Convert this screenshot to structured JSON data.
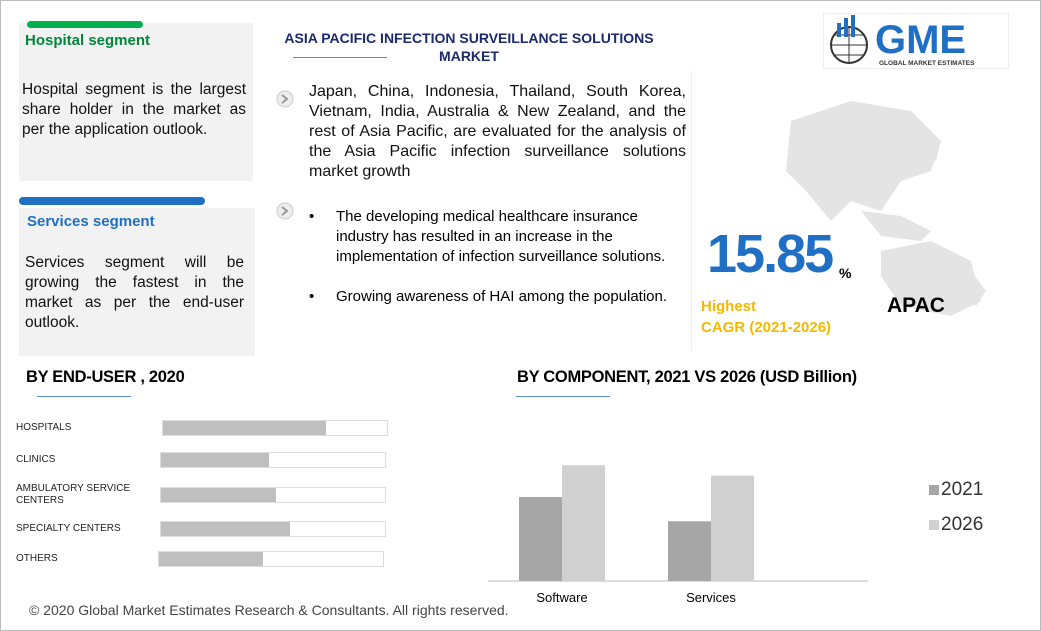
{
  "header": {
    "title": "ASIA PACIFIC INFECTION SURVEILLANCE SOLUTIONS MARKET",
    "logo": "GME",
    "logo_sub": "GLOBAL MARKET ESTIMATES"
  },
  "segments": [
    {
      "title": "Hospital segment",
      "text": "Hospital segment is the largest share holder in the market as per the application outlook."
    },
    {
      "title": "Services segment",
      "text": "Services segment will be growing the fastest in the market as per the end-user outlook."
    }
  ],
  "overview": {
    "text": "Japan, China, Indonesia, Thailand, South Korea, Vietnam, India, Australia & New Zealand, and the rest of Asia Pacific, are evaluated for the analysis of the Asia Pacific infection surveillance solutions market  growth",
    "bullets": [
      "The developing medical healthcare insurance industry has resulted in an increase in the implementation of infection surveillance solutions.",
      "Growing awareness of HAI among the population."
    ]
  },
  "cagr": {
    "value": 15.85,
    "unit": "%",
    "label_1": "Highest",
    "label_2": "CAGR (2021-2026)",
    "region": "APAC"
  },
  "chart_data": [
    {
      "type": "hbar",
      "title": "BY END-USER , 2020",
      "categories": [
        "HOSPITALS",
        "CLINICS",
        "AMBULATORY SERVICE CENTERS",
        "SPECIALTY CENTERS",
        "OTHERS"
      ],
      "values": [
        72,
        48,
        51,
        57,
        46
      ],
      "xlim": [
        0,
        100
      ],
      "color": "#bfbfbf"
    },
    {
      "type": "bar",
      "title": "BY COMPONENT, 2021 VS 2026 (USD Billion)",
      "categories": [
        "Software",
        "Services"
      ],
      "series": [
        {
          "name": "2021",
          "color": "#a6a6a6",
          "values": [
            90,
            64
          ]
        },
        {
          "name": "2026",
          "color": "#d0d0d0",
          "values": [
            124,
            113
          ]
        }
      ],
      "ylim": [
        0,
        150
      ]
    }
  ],
  "footer": "© 2020 Global Market Estimates Research & Consultants. All rights reserved."
}
